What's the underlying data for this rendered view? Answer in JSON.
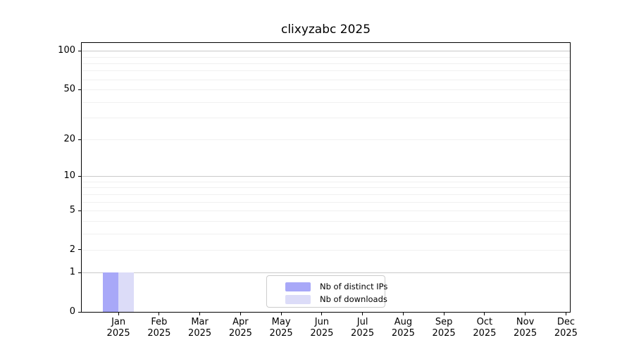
{
  "chart_data": {
    "type": "bar",
    "title": "clixyzabc 2025",
    "categories": [
      "Jan 2025",
      "Feb 2025",
      "Mar 2025",
      "Apr 2025",
      "May 2025",
      "Jun 2025",
      "Jul 2025",
      "Aug 2025",
      "Sep 2025",
      "Oct 2025",
      "Nov 2025",
      "Dec 2025"
    ],
    "series": [
      {
        "name": "Nb of distinct IPs",
        "color": "#a8a8f8",
        "values": [
          1,
          0,
          0,
          0,
          0,
          0,
          0,
          0,
          0,
          0,
          0,
          0
        ]
      },
      {
        "name": "Nb of downloads",
        "color": "#dcdcf8",
        "values": [
          1,
          0,
          0,
          0,
          0,
          0,
          0,
          0,
          0,
          0,
          0,
          0
        ]
      }
    ],
    "xlabel": "",
    "ylabel": "",
    "yscale": "log1p",
    "ylim": [
      0,
      115
    ],
    "yticks": [
      0,
      1,
      2,
      5,
      10,
      20,
      50,
      100
    ],
    "yticks_major_grid": [
      1,
      10,
      100
    ],
    "yticks_minor_grid": [
      2,
      3,
      4,
      5,
      6,
      7,
      8,
      9,
      20,
      30,
      40,
      50,
      60,
      70,
      80,
      90
    ],
    "grid": "horizontal",
    "legend_position": "bottom-center",
    "style": {
      "grid_major_color": "#c9c9c9",
      "grid_minor_color": "#f0f0f0",
      "axis_color": "#000000",
      "text_color": "#000000",
      "background_color": "#ffffff"
    }
  }
}
